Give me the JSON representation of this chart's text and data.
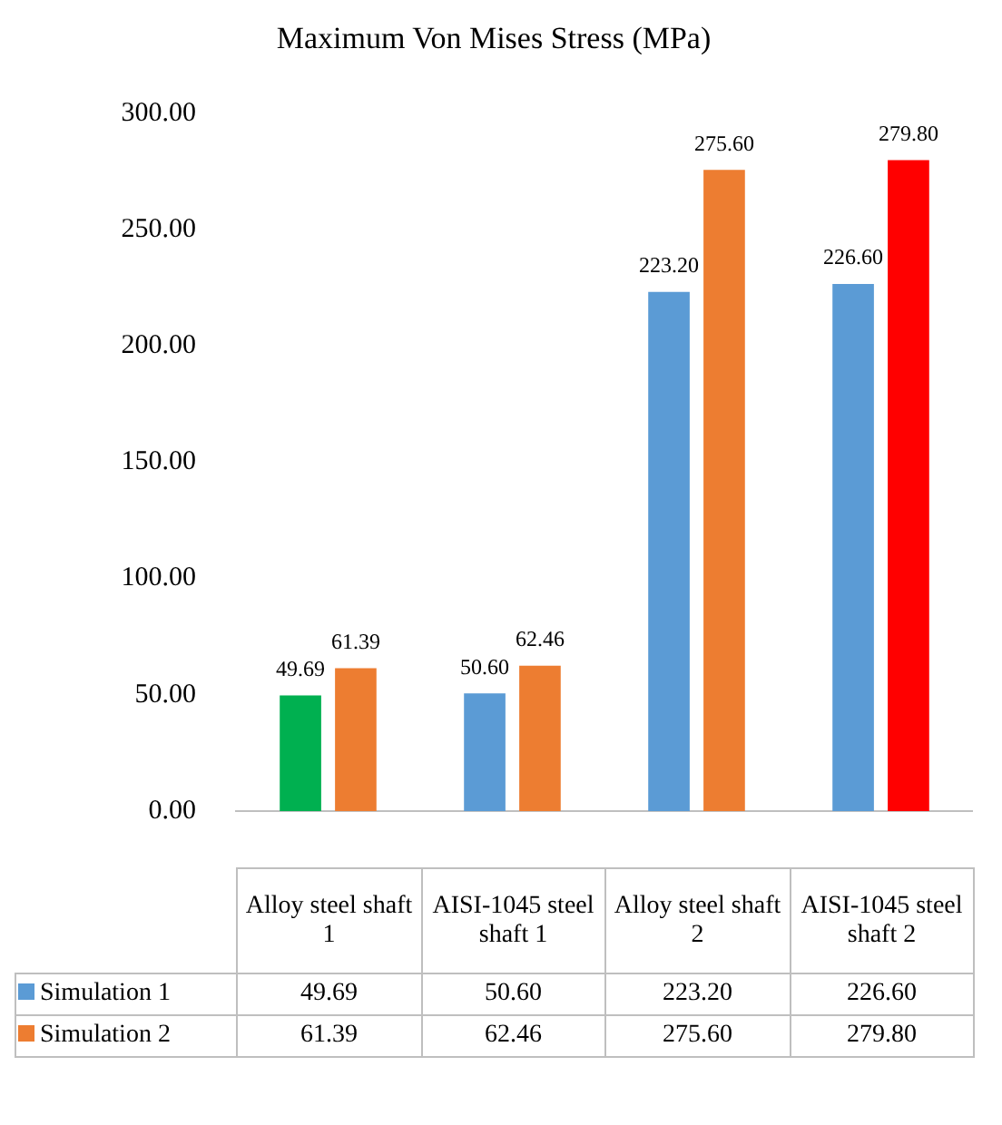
{
  "chart_data": {
    "type": "bar",
    "title": "Maximum Von Mises Stress (MPa)",
    "categories": [
      "Alloy steel shaft 1",
      "AISI-1045 steel shaft 1",
      "Alloy steel shaft 2",
      "AISI-1045 steel shaft 2"
    ],
    "series": [
      {
        "name": "Simulation 1",
        "color": "#5b9bd5",
        "colors": [
          "#00b050",
          "#5b9bd5",
          "#5b9bd5",
          "#5b9bd5"
        ],
        "values": [
          49.69,
          50.6,
          223.2,
          226.6
        ],
        "value_labels": [
          "49.69",
          "50.60",
          "223.20",
          "226.60"
        ]
      },
      {
        "name": "Simulation 2",
        "color": "#ed7d31",
        "colors": [
          "#ed7d31",
          "#ed7d31",
          "#ed7d31",
          "#ff0000"
        ],
        "values": [
          61.39,
          62.46,
          275.6,
          279.8
        ],
        "value_labels": [
          "61.39",
          "62.46",
          "275.60",
          "279.80"
        ]
      }
    ],
    "ylim": [
      0,
      300
    ],
    "yticks": [
      {
        "value": 0,
        "label": "0.00"
      },
      {
        "value": 50,
        "label": "50.00"
      },
      {
        "value": 100,
        "label": "100.00"
      },
      {
        "value": 150,
        "label": "150.00"
      },
      {
        "value": 200,
        "label": "200.00"
      },
      {
        "value": 250,
        "label": "250.00"
      },
      {
        "value": 300,
        "label": "300.00"
      }
    ],
    "grid": false,
    "legend": "bottom"
  }
}
